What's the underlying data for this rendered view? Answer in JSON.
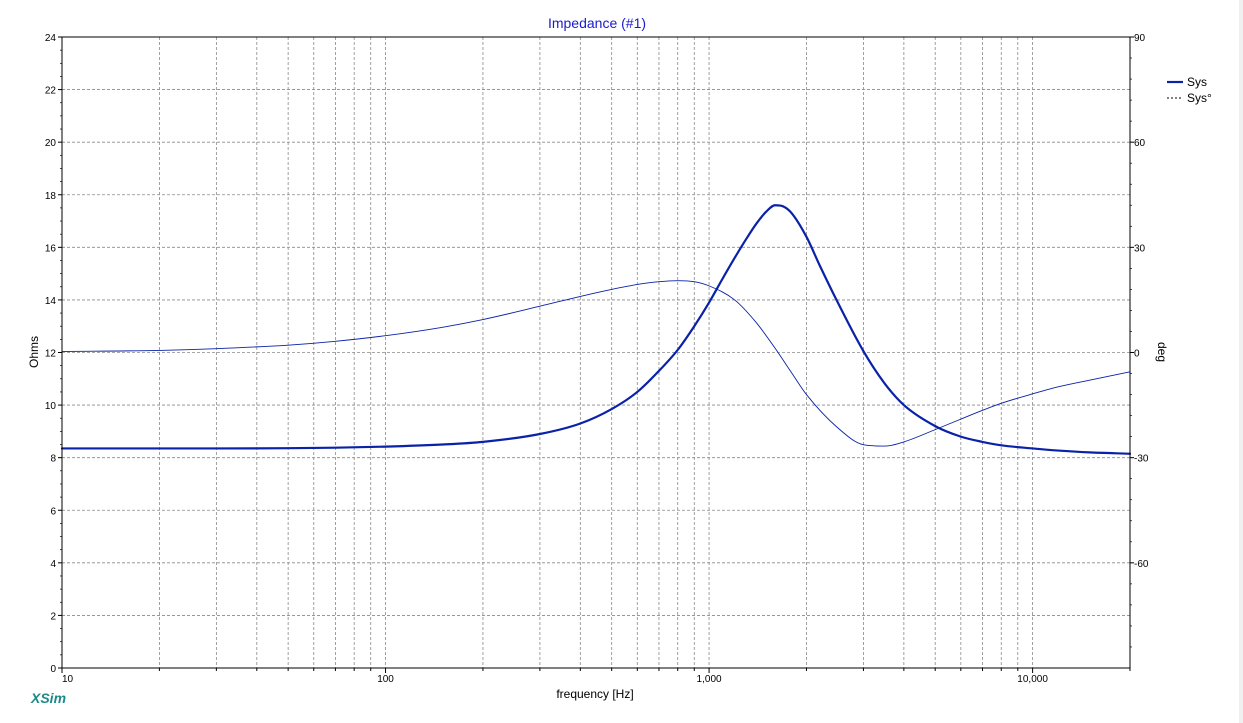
{
  "brand": "XSim",
  "chart_data": {
    "type": "line",
    "title": "Impedance (#1)",
    "xlabel": "frequency [Hz]",
    "ylabel": "Ohms",
    "y2label": "deg",
    "x_scale": "log",
    "xlim": [
      10,
      20000
    ],
    "ylim": [
      0,
      24
    ],
    "y2lim": [
      -90,
      90
    ],
    "x_ticks": [
      {
        "value": 10,
        "label": "10"
      },
      {
        "value": 100,
        "label": "100"
      },
      {
        "value": 1000,
        "label": "1,000"
      },
      {
        "value": 10000,
        "label": "10,000"
      }
    ],
    "y_ticks": [
      0,
      2,
      4,
      6,
      8,
      10,
      12,
      14,
      16,
      18,
      20,
      22,
      24
    ],
    "y2_ticks": [
      -60,
      -30,
      0,
      30,
      60,
      90
    ],
    "grid": true,
    "legend_position": "top-right",
    "colors": {
      "line": "#0a22a8",
      "title": "#1a1ad0",
      "grid": "#8a8a8a",
      "brand": "#1c8a8a"
    },
    "series": [
      {
        "name": "Sys",
        "axis": "left",
        "style": "solid-thick",
        "x": [
          10,
          20,
          30,
          50,
          70,
          100,
          150,
          200,
          300,
          400,
          500,
          600,
          700,
          800,
          900,
          1000,
          1100,
          1200,
          1300,
          1400,
          1500,
          1600,
          1700,
          1800,
          2000,
          2200,
          2500,
          3000,
          3500,
          4000,
          5000,
          6000,
          7000,
          8000,
          10000,
          12000,
          15000,
          20000
        ],
        "y": [
          8.35,
          8.35,
          8.35,
          8.36,
          8.38,
          8.42,
          8.5,
          8.6,
          8.9,
          9.3,
          9.85,
          10.5,
          11.3,
          12.1,
          13.0,
          13.9,
          14.8,
          15.6,
          16.3,
          16.9,
          17.35,
          17.6,
          17.55,
          17.3,
          16.4,
          15.3,
          13.9,
          12.05,
          10.8,
          10.0,
          9.2,
          8.8,
          8.6,
          8.47,
          8.35,
          8.27,
          8.2,
          8.15
        ]
      },
      {
        "name": "Sys°",
        "axis": "right",
        "style": "solid-thin",
        "x": [
          10,
          20,
          30,
          50,
          70,
          100,
          150,
          200,
          300,
          400,
          500,
          600,
          700,
          800,
          900,
          1000,
          1200,
          1400,
          1600,
          1800,
          2000,
          2500,
          3000,
          3500,
          4000,
          5000,
          6000,
          7000,
          8000,
          10000,
          12000,
          15000,
          20000
        ],
        "y": [
          0.3,
          0.6,
          1.1,
          2.1,
          3.2,
          4.8,
          7.2,
          9.4,
          13.2,
          16.0,
          18.0,
          19.4,
          20.2,
          20.5,
          20.2,
          19.0,
          15.0,
          8.5,
          1.2,
          -5.8,
          -12.0,
          -21.5,
          -26.3,
          -26.7,
          -25.5,
          -22.0,
          -19.0,
          -16.5,
          -14.5,
          -11.8,
          -9.8,
          -7.9,
          -5.5
        ]
      }
    ]
  }
}
